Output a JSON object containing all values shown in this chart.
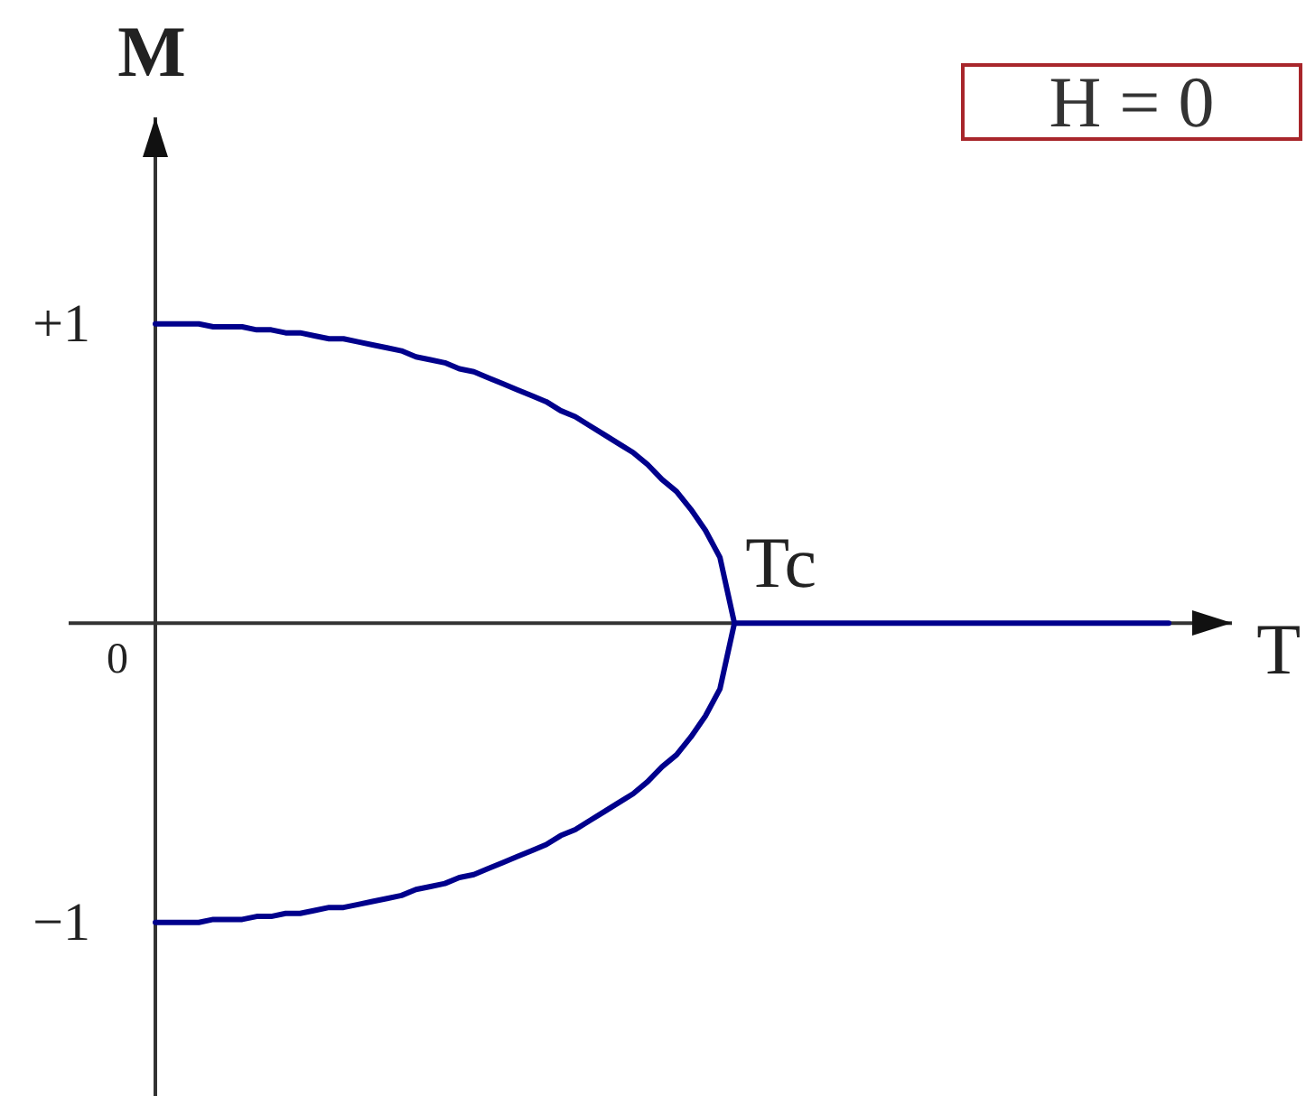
{
  "chart_data": {
    "type": "line",
    "xlabel": "T",
    "ylabel": "M",
    "annotations": [
      "H = 0",
      "0",
      "Tc"
    ],
    "categories": [
      null,
      null,
      null,
      null,
      null,
      null,
      null,
      null,
      null,
      null,
      null,
      null,
      null,
      null,
      null,
      null,
      null,
      null,
      null,
      null,
      null,
      null,
      null,
      null,
      null,
      null,
      null,
      null,
      null,
      null,
      null,
      null,
      null,
      null,
      null,
      null,
      null,
      null,
      null,
      null,
      null,
      null,
      null,
      null,
      null,
      null,
      null,
      null,
      null,
      null,
      null,
      null,
      null,
      null,
      null,
      null,
      null,
      null,
      null,
      null,
      null,
      null,
      null,
      null,
      null,
      null,
      null,
      null,
      null,
      null,
      null
    ],
    "ylim": [
      -1.58,
      1.69
    ],
    "yticks": [
      {
        "value": 1,
        "label": "+1"
      },
      {
        "value": -1,
        "label": "−1"
      }
    ],
    "marker": "none",
    "series": [
      {
        "color": "#00008c",
        "values": [
          1,
          1,
          1,
          1,
          0.99,
          0.99,
          0.99,
          0.98,
          0.98,
          0.97,
          0.97,
          0.96,
          0.95,
          0.95,
          0.94,
          0.93,
          0.92,
          0.91,
          0.89,
          0.88,
          0.87,
          0.85,
          0.84,
          0.82,
          0.8,
          0.78,
          0.76,
          0.74,
          0.71,
          0.69,
          0.66,
          0.63,
          0.6,
          0.57,
          0.53,
          0.48,
          0.44,
          0.38,
          0.31,
          0.22,
          0,
          0,
          0,
          0,
          0,
          0,
          0,
          0,
          0,
          0,
          0,
          0,
          0,
          0,
          0,
          0,
          0,
          0,
          0,
          0,
          0,
          0,
          0,
          0,
          0,
          0,
          0,
          0,
          0,
          0,
          0
        ]
      },
      {
        "color": "#00008c",
        "values": [
          -1,
          -1,
          -1,
          -1,
          -0.99,
          -0.99,
          -0.99,
          -0.98,
          -0.98,
          -0.97,
          -0.97,
          -0.96,
          -0.95,
          -0.95,
          -0.94,
          -0.93,
          -0.92,
          -0.91,
          -0.89,
          -0.88,
          -0.87,
          -0.85,
          -0.84,
          -0.82,
          -0.8,
          -0.78,
          -0.76,
          -0.74,
          -0.71,
          -0.69,
          -0.66,
          -0.63,
          -0.6,
          -0.57,
          -0.53,
          -0.48,
          -0.44,
          -0.38,
          -0.31,
          -0.22,
          0,
          null,
          null,
          null,
          null,
          null,
          null,
          null,
          null,
          null,
          null,
          null,
          null,
          null,
          null,
          null,
          null,
          null,
          null,
          null,
          null,
          null,
          null,
          null,
          null,
          null,
          null,
          null,
          null,
          null,
          null
        ]
      }
    ]
  }
}
